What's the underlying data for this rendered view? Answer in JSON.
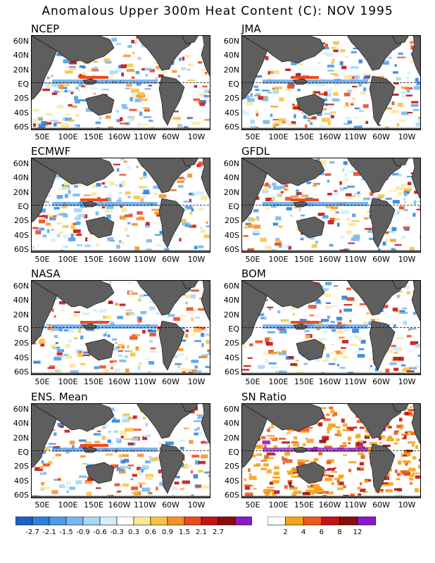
{
  "title": "Anomalous Upper 300m Heat Content (C): NOV 1995",
  "lat_labels": [
    "60N",
    "40N",
    "20N",
    "EQ",
    "20S",
    "40S",
    "60S"
  ],
  "lon_labels": [
    "50E",
    "100E",
    "150E",
    "160W",
    "110W",
    "60W",
    "10W"
  ],
  "panels": [
    {
      "name": "NCEP"
    },
    {
      "name": "JMA"
    },
    {
      "name": "ECMWF"
    },
    {
      "name": "GFDL"
    },
    {
      "name": "NASA"
    },
    {
      "name": "BOM"
    },
    {
      "name": "ENS. Mean"
    },
    {
      "name": "SN Ratio"
    }
  ],
  "colorbar_anomaly": {
    "labels": [
      "-2.7",
      "-2.1",
      "-1.5",
      "-0.9",
      "-0.6",
      "-0.3",
      "0.3",
      "0.6",
      "0.9",
      "1.5",
      "2.1",
      "2.7"
    ],
    "colors": [
      "#1c5fc9",
      "#2f7fe0",
      "#4d9bea",
      "#78b8f2",
      "#a9d6f8",
      "#d2eefb",
      "#ffffff",
      "#fde79a",
      "#fbc245",
      "#f6922a",
      "#ee4a1d",
      "#c21512",
      "#8a0d0d",
      "#8a1aca"
    ]
  },
  "colorbar_snr": {
    "labels": [
      "2",
      "4",
      "6",
      "8",
      "12"
    ],
    "colors": [
      "#ffffff",
      "#f7a21e",
      "#ee5a1d",
      "#c21512",
      "#8a0d0d",
      "#8a1aca"
    ]
  },
  "colors": {
    "land": "#5e5e5e",
    "ocean": "#ffffff"
  }
}
